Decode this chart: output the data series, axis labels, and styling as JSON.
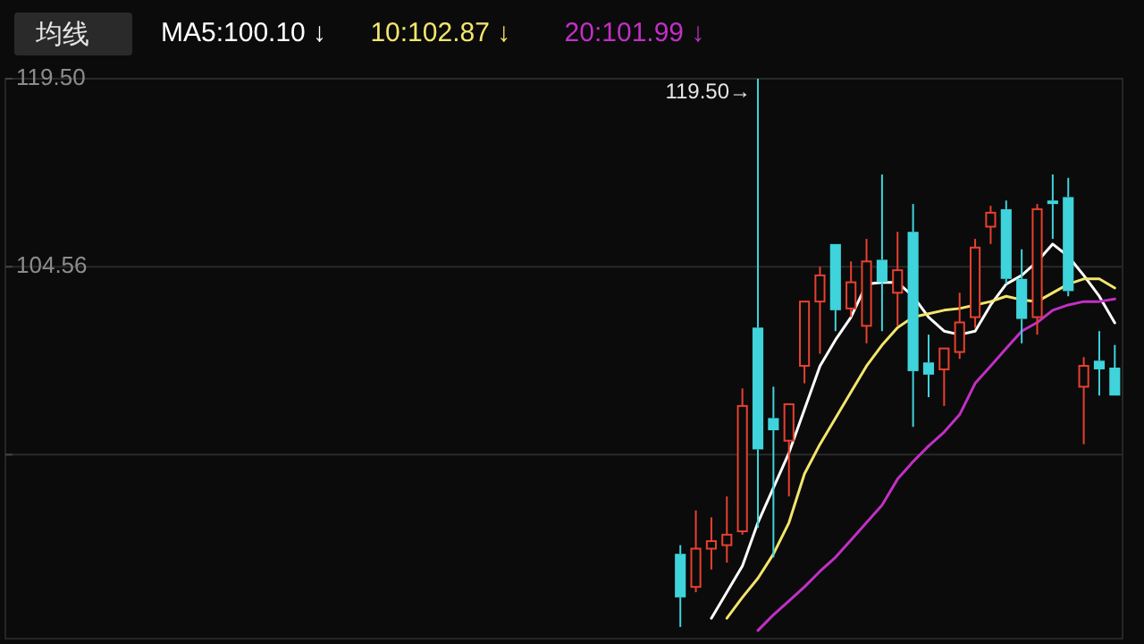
{
  "chart_data": {
    "type": "candlestick",
    "categories": [
      null,
      null,
      null,
      null,
      null,
      null,
      null,
      null,
      null,
      null,
      null,
      null,
      null,
      null,
      null,
      null,
      null,
      null,
      null,
      null,
      null,
      null,
      null,
      null,
      null,
      null,
      null,
      null,
      null,
      null,
      null,
      null,
      null,
      null,
      null,
      null,
      null,
      null,
      null,
      null,
      null,
      null,
      null,
      null,
      null,
      null,
      null,
      null,
      null,
      null,
      null,
      null,
      null,
      null,
      null,
      null,
      null,
      null,
      null,
      null,
      null,
      null,
      null,
      null,
      null,
      null,
      null,
      null,
      null,
      null,
      null,
      null
    ],
    "ohlc": [
      null,
      null,
      null,
      null,
      null,
      null,
      null,
      null,
      null,
      null,
      null,
      null,
      null,
      null,
      null,
      null,
      null,
      null,
      null,
      null,
      null,
      null,
      null,
      null,
      null,
      null,
      null,
      null,
      null,
      null,
      null,
      null,
      null,
      null,
      null,
      null,
      null,
      null,
      null,
      null,
      null,
      null,
      null,
      [
        81.74,
        82.43,
        75.93,
        78.28
      ],
      [
        79.11,
        85.19,
        78.69,
        82.15
      ],
      [
        82.15,
        84.64,
        80.49,
        82.75
      ],
      [
        82.43,
        86.3,
        81.04,
        83.26
      ],
      [
        83.53,
        94.88,
        83.26,
        93.49
      ],
      [
        99.72,
        119.5,
        83.81,
        90.04
      ],
      [
        92.53,
        95.02,
        81.46,
        91.56
      ],
      [
        90.73,
        93.63,
        86.3,
        93.63
      ],
      [
        96.68,
        101.79,
        95.29,
        101.79
      ],
      [
        101.79,
        104.56,
        97.64,
        103.87
      ],
      [
        106.36,
        106.36,
        99.44,
        101.1
      ],
      [
        101.24,
        104.98,
        100.55,
        103.32
      ],
      [
        99.86,
        106.77,
        98.47,
        104.98
      ],
      [
        105.11,
        111.89,
        99.44,
        103.32
      ],
      [
        102.49,
        107.33,
        99.86,
        104.28
      ],
      [
        107.33,
        109.54,
        91.83,
        96.26
      ],
      [
        96.95,
        99.16,
        94.19,
        95.98
      ],
      [
        96.4,
        98.06,
        93.49,
        98.06
      ],
      [
        97.78,
        102.49,
        97.23,
        100.13
      ],
      [
        100.55,
        106.77,
        99.72,
        106.08
      ],
      [
        107.74,
        109.4,
        106.36,
        108.85
      ],
      [
        109.13,
        109.82,
        103.18,
        103.59
      ],
      [
        103.59,
        105.94,
        98.47,
        100.41
      ],
      [
        100.55,
        109.54,
        99.16,
        109.13
      ],
      [
        109.82,
        111.89,
        106.77,
        109.54
      ],
      [
        110.09,
        111.62,
        102.21,
        102.62
      ],
      [
        95.02,
        97.37,
        90.45,
        96.68
      ],
      [
        97.09,
        99.44,
        94.32,
        96.4
      ],
      [
        96.54,
        98.34,
        94.32,
        94.32
      ]
    ],
    "colors": [
      null,
      null,
      null,
      null,
      null,
      null,
      null,
      null,
      null,
      null,
      null,
      null,
      null,
      null,
      null,
      null,
      null,
      null,
      null,
      null,
      null,
      null,
      null,
      null,
      null,
      null,
      null,
      null,
      null,
      null,
      null,
      null,
      null,
      null,
      null,
      null,
      null,
      null,
      null,
      null,
      null,
      null,
      null,
      "#3fd3dc",
      "#e8412f",
      "#e8412f",
      "#e8412f",
      "#e8412f",
      "#3fd3dc",
      "#3fd3dc",
      "#e8412f",
      "#e8412f",
      "#e8412f",
      "#3fd3dc",
      "#e8412f",
      "#e8412f",
      "#3fd3dc",
      "#e8412f",
      "#3fd3dc",
      "#3fd3dc",
      "#e8412f",
      "#e8412f",
      "#e8412f",
      "#e8412f",
      "#3fd3dc",
      "#3fd3dc",
      "#e8412f",
      "#3fd3dc",
      "#3fd3dc",
      "#e8412f",
      "#3fd3dc",
      "#3fd3dc"
    ],
    "series": [
      {
        "name": "MA5:100.10 ↓",
        "type": "line",
        "color": "#ffffff",
        "values": [
          null,
          null,
          null,
          null,
          null,
          null,
          null,
          null,
          null,
          null,
          null,
          null,
          null,
          null,
          null,
          null,
          null,
          null,
          null,
          null,
          null,
          null,
          null,
          null,
          null,
          null,
          null,
          null,
          null,
          null,
          null,
          null,
          null,
          null,
          null,
          null,
          null,
          null,
          null,
          null,
          null,
          null,
          null,
          null,
          null,
          76.62,
          78.69,
          80.77,
          84.22,
          86.99,
          89.76,
          93.22,
          96.67,
          98.75,
          100.55,
          103.18,
          103.31,
          103.31,
          102.21,
          100.55,
          99.44,
          99.16,
          99.44,
          101.52,
          103.18,
          103.87,
          104.97,
          106.36,
          105.39,
          103.87,
          102.21,
          100.1
        ]
      },
      {
        "name": "10:102.87 ↓",
        "type": "line",
        "color": "#f3e56c",
        "values": [
          null,
          null,
          null,
          null,
          null,
          null,
          null,
          null,
          null,
          null,
          null,
          null,
          null,
          null,
          null,
          null,
          null,
          null,
          null,
          null,
          null,
          null,
          null,
          null,
          null,
          null,
          null,
          null,
          null,
          null,
          null,
          null,
          null,
          null,
          null,
          null,
          null,
          null,
          null,
          null,
          null,
          null,
          null,
          null,
          null,
          null,
          76.62,
          78.28,
          79.8,
          81.73,
          84.22,
          88.1,
          90.45,
          92.52,
          94.6,
          96.67,
          98.33,
          99.72,
          100.55,
          100.82,
          101.1,
          101.24,
          101.52,
          101.79,
          102.21,
          101.93,
          101.79,
          102.48,
          103.18,
          103.59,
          103.59,
          102.87
        ]
      },
      {
        "name": "20:101.99 ↓",
        "type": "line",
        "color": "#c130c4",
        "values": [
          null,
          null,
          null,
          null,
          null,
          null,
          null,
          null,
          null,
          null,
          null,
          null,
          null,
          null,
          null,
          null,
          null,
          null,
          null,
          null,
          null,
          null,
          null,
          null,
          null,
          null,
          null,
          null,
          null,
          null,
          null,
          null,
          null,
          null,
          null,
          null,
          null,
          null,
          null,
          null,
          null,
          null,
          null,
          null,
          null,
          null,
          null,
          null,
          75.65,
          76.89,
          78.0,
          79.11,
          80.35,
          81.46,
          82.84,
          84.22,
          85.61,
          87.68,
          89.07,
          90.31,
          91.42,
          92.8,
          95.29,
          96.67,
          98.06,
          99.44,
          100.13,
          101.1,
          101.52,
          101.79,
          101.79,
          101.99
        ]
      }
    ],
    "ylim": [
      75,
      119.5
    ],
    "yticks": [
      {
        "value": 119.5,
        "label": "119.50"
      },
      104.56,
      {
        "value": 89.62,
        "label": null
      }
    ],
    "grid": "y",
    "legend": "top left",
    "annotations": [
      "均线",
      "119.50→"
    ]
  }
}
